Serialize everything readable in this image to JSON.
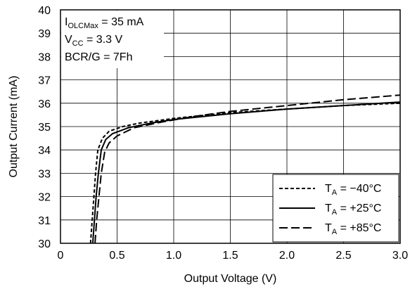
{
  "chart_data": {
    "type": "line",
    "xlabel": "Output Voltage (V)",
    "ylabel": "Output Current (mA)",
    "xlim": [
      0,
      3.0
    ],
    "ylim": [
      30,
      40
    ],
    "xticks": [
      "0",
      "0.5",
      "1.0",
      "1.5",
      "2.0",
      "2.5",
      "3.0"
    ],
    "xtick_values": [
      0,
      0.5,
      1.0,
      1.5,
      2.0,
      2.5,
      3.0
    ],
    "yticks": [
      "30",
      "31",
      "32",
      "33",
      "34",
      "35",
      "36",
      "37",
      "38",
      "39",
      "40"
    ],
    "ytick_values": [
      30,
      31,
      32,
      33,
      34,
      35,
      36,
      37,
      38,
      39,
      40
    ],
    "grid": true,
    "legend_position": "bottom-right",
    "annotations": [
      {
        "main": "I",
        "sub": "OLCMax",
        "rest": " = 35 mA"
      },
      {
        "main": "V",
        "sub": "CC",
        "rest": " = 3.3 V"
      },
      {
        "main": "BCR/G = 7Fh",
        "sub": "",
        "rest": ""
      }
    ],
    "series": [
      {
        "name_main": "T",
        "name_sub": "A",
        "name_rest": " = −40°C",
        "dash": "short",
        "points": [
          [
            0.265,
            30
          ],
          [
            0.28,
            31
          ],
          [
            0.295,
            32
          ],
          [
            0.31,
            33
          ],
          [
            0.33,
            34
          ],
          [
            0.37,
            34.5
          ],
          [
            0.43,
            34.8
          ],
          [
            0.55,
            35.0
          ],
          [
            0.7,
            35.15
          ],
          [
            1.0,
            35.35
          ],
          [
            1.5,
            35.6
          ],
          [
            2.0,
            35.75
          ],
          [
            2.5,
            35.9
          ],
          [
            3.0,
            36.0
          ]
        ]
      },
      {
        "name_main": "T",
        "name_sub": "A",
        "name_rest": " = +25°C",
        "dash": "solid",
        "points": [
          [
            0.285,
            30
          ],
          [
            0.3,
            31
          ],
          [
            0.315,
            32
          ],
          [
            0.335,
            33
          ],
          [
            0.36,
            34
          ],
          [
            0.4,
            34.45
          ],
          [
            0.46,
            34.7
          ],
          [
            0.6,
            34.95
          ],
          [
            0.8,
            35.15
          ],
          [
            1.0,
            35.3
          ],
          [
            1.5,
            35.55
          ],
          [
            2.0,
            35.75
          ],
          [
            2.5,
            35.9
          ],
          [
            3.0,
            36.05
          ]
        ]
      },
      {
        "name_main": "T",
        "name_sub": "A",
        "name_rest": " = +85°C",
        "dash": "long",
        "points": [
          [
            0.305,
            30
          ],
          [
            0.32,
            31
          ],
          [
            0.34,
            32
          ],
          [
            0.36,
            33
          ],
          [
            0.39,
            33.9
          ],
          [
            0.43,
            34.3
          ],
          [
            0.5,
            34.6
          ],
          [
            0.65,
            34.95
          ],
          [
            0.9,
            35.2
          ],
          [
            1.2,
            35.45
          ],
          [
            1.5,
            35.65
          ],
          [
            2.0,
            35.9
          ],
          [
            2.5,
            36.15
          ],
          [
            3.0,
            36.35
          ]
        ]
      }
    ]
  }
}
